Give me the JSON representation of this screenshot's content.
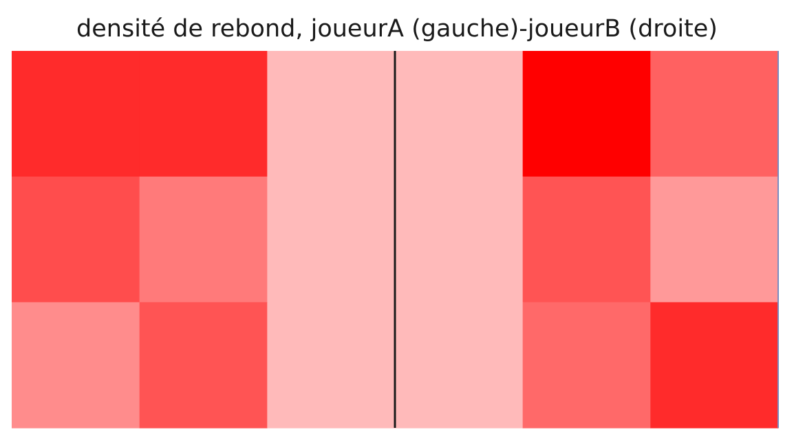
{
  "chart_data": {
    "type": "heatmap",
    "title": "densité de rebond, joueurA (gauche)-joueurB (droite)",
    "xlabel": "",
    "ylabel": "",
    "grid": false,
    "colormap": "white-to-red",
    "color_scale": {
      "low": "#ffffff",
      "high": "#ff0000"
    },
    "rows": 3,
    "columns": 6,
    "values": [
      [
        0.83,
        0.83,
        0.27,
        0.27,
        1.0,
        0.62
      ],
      [
        0.7,
        0.52,
        0.27,
        0.27,
        0.67,
        0.4
      ],
      [
        0.45,
        0.67,
        0.27,
        0.27,
        0.59,
        0.83
      ]
    ],
    "center_line": true
  }
}
